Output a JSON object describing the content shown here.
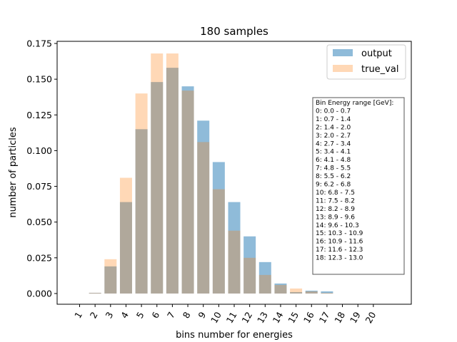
{
  "chart_data": {
    "type": "bar",
    "title": "180 samples",
    "xlabel": "bins number for energies",
    "ylabel": "number of particles",
    "categories": [
      "1",
      "2",
      "3",
      "4",
      "5",
      "6",
      "7",
      "8",
      "9",
      "10",
      "11",
      "12",
      "13",
      "14",
      "15",
      "16",
      "17",
      "18",
      "19",
      "20"
    ],
    "ylim": [
      -0.0075,
      0.1765
    ],
    "yticks": [
      "0.000",
      "0.025",
      "0.050",
      "0.075",
      "0.100",
      "0.125",
      "0.150",
      "0.175"
    ],
    "ytick_values": [
      0,
      0.025,
      0.05,
      0.075,
      0.1,
      0.125,
      0.15,
      0.175
    ],
    "grid": false,
    "legend_position": "top-right",
    "series": [
      {
        "name": "output",
        "color": "#1f77b4",
        "opacity": 0.5,
        "values": [
          0,
          0.0005,
          0.019,
          0.064,
          0.115,
          0.148,
          0.158,
          0.145,
          0.121,
          0.092,
          0.064,
          0.04,
          0.022,
          0.007,
          0.001,
          0.002,
          0.0015,
          0,
          0,
          0
        ]
      },
      {
        "name": "true_val",
        "color": "#ff7f0e",
        "opacity": 0.3,
        "values": [
          0,
          0.0005,
          0.024,
          0.081,
          0.14,
          0.168,
          0.168,
          0.142,
          0.106,
          0.073,
          0.044,
          0.025,
          0.013,
          0.006,
          0.0035,
          0.0015,
          0.0005,
          0,
          0,
          0
        ]
      }
    ],
    "annotation": {
      "lines": [
        "Bin Energy range [GeV]:",
        "0: 0.0 - 0.7",
        "1: 0.7 - 1.4",
        "2: 1.4 - 2.0",
        "3: 2.0 - 2.7",
        "4: 2.7 - 3.4",
        "5: 3.4 - 4.1",
        "6: 4.1 - 4.8",
        "7: 4.8 - 5.5",
        "8: 5.5 - 6.2",
        "9: 6.2 - 6.8",
        "10: 6.8 - 7.5",
        "11: 7.5 - 8.2",
        "12: 8.2 - 8.9",
        "13: 8.9 - 9.6",
        "14: 9.6 - 10.3",
        "15: 10.3 - 10.9",
        "16: 10.9 - 11.6",
        "17: 11.6 - 12.3",
        "18: 12.3 - 13.0"
      ]
    }
  }
}
